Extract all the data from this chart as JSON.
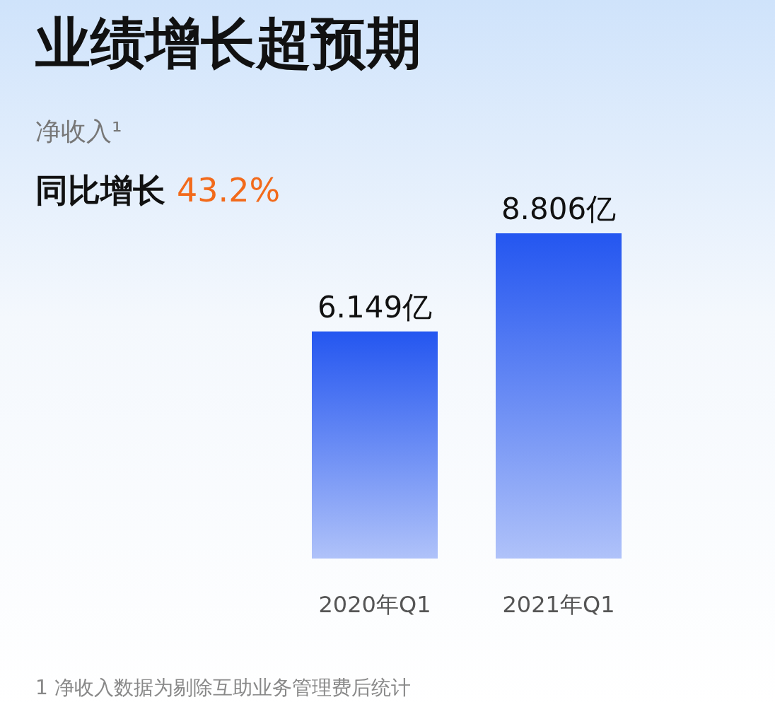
{
  "chart_data": {
    "type": "bar",
    "title": "业绩增长超预期",
    "subtitle": "净收入¹",
    "annotations": [
      "同比增长 43.2%",
      "1 净收入数据为剔除互助业务管理费后统计"
    ],
    "categories": [
      "2020年Q1",
      "2021年Q1"
    ],
    "values": [
      6.149,
      8.806
    ],
    "value_labels": [
      "6.149亿",
      "8.806亿"
    ],
    "color": "#2456f0"
  }
}
